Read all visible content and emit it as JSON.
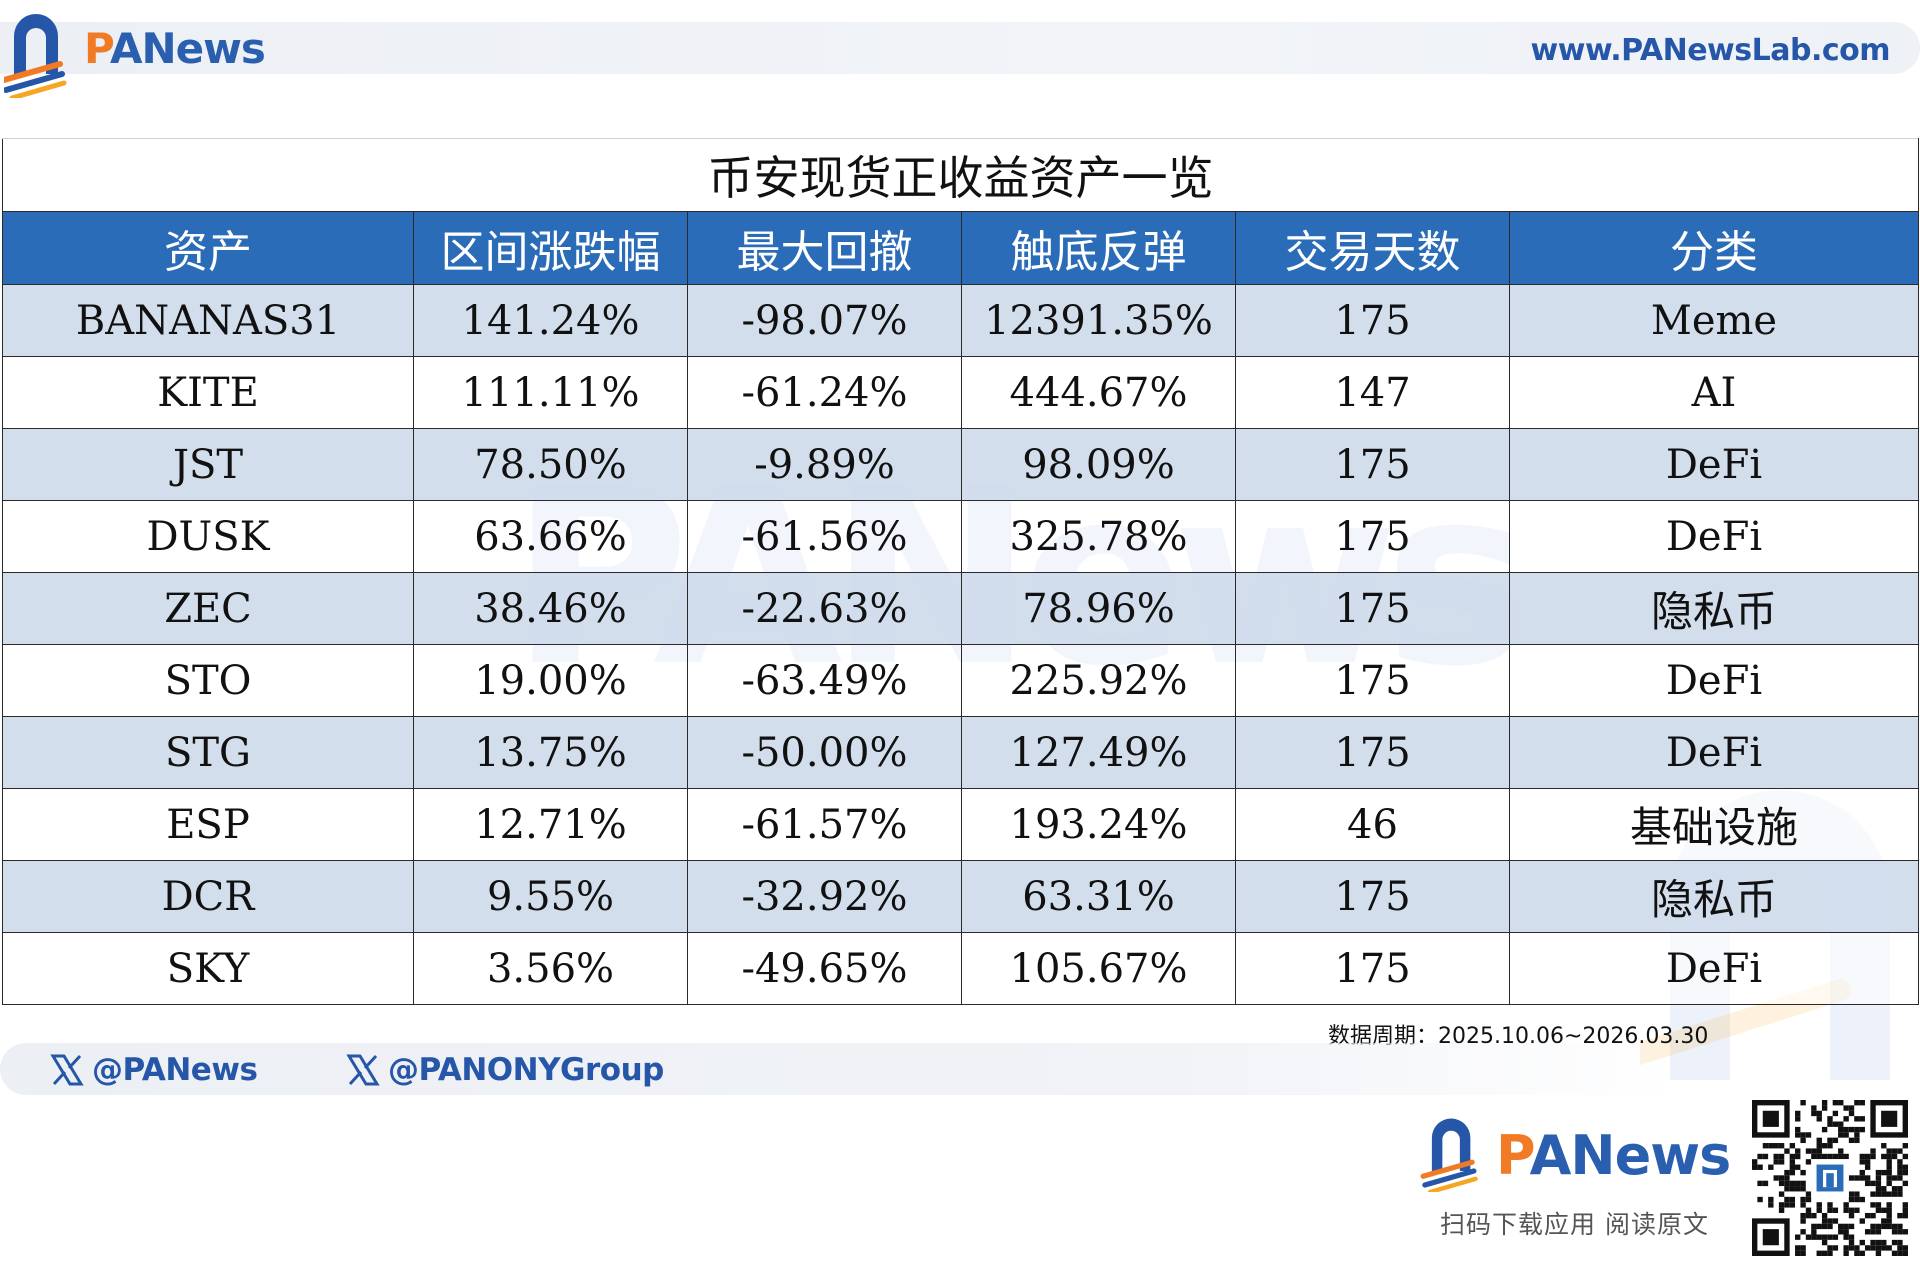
{
  "brand": {
    "logo_text_p": "P",
    "logo_text_rest": "ANews",
    "site_url": "www.PANewsLab.com",
    "accent_blue": "#2b6cb8",
    "accent_orange": "#f07b24",
    "row_tint": "#cfdbec"
  },
  "table": {
    "title": "币安现货正收益资产一览",
    "headers": [
      "资产",
      "区间涨跌幅",
      "最大回撤",
      "触底反弹",
      "交易天数",
      "分类"
    ],
    "rows": [
      [
        "BANANAS31",
        "141.24%",
        "-98.07%",
        "12391.35%",
        "175",
        "Meme"
      ],
      [
        "KITE",
        "111.11%",
        "-61.24%",
        "444.67%",
        "147",
        "AI"
      ],
      [
        "JST",
        "78.50%",
        "-9.89%",
        "98.09%",
        "175",
        "DeFi"
      ],
      [
        "DUSK",
        "63.66%",
        "-61.56%",
        "325.78%",
        "175",
        "DeFi"
      ],
      [
        "ZEC",
        "38.46%",
        "-22.63%",
        "78.96%",
        "175",
        "隐私币"
      ],
      [
        "STO",
        "19.00%",
        "-63.49%",
        "225.92%",
        "175",
        "DeFi"
      ],
      [
        "STG",
        "13.75%",
        "-50.00%",
        "127.49%",
        "175",
        "DeFi"
      ],
      [
        "ESP",
        "12.71%",
        "-61.57%",
        "193.24%",
        "46",
        "基础设施"
      ],
      [
        "DCR",
        "9.55%",
        "-32.92%",
        "63.31%",
        "175",
        "隐私币"
      ],
      [
        "SKY",
        "3.56%",
        "-49.65%",
        "105.67%",
        "175",
        "DeFi"
      ]
    ],
    "date_range": "数据周期：2025.10.06~2026.03.30"
  },
  "watermark": {
    "text": "PANews"
  },
  "footer": {
    "social": [
      {
        "icon": "x-icon",
        "handle": "@PANews"
      },
      {
        "icon": "x-icon",
        "handle": "@PANONYGroup"
      }
    ],
    "download_label": "扫码下载应用  阅读原文",
    "qr_icon": "qr-code-icon"
  }
}
